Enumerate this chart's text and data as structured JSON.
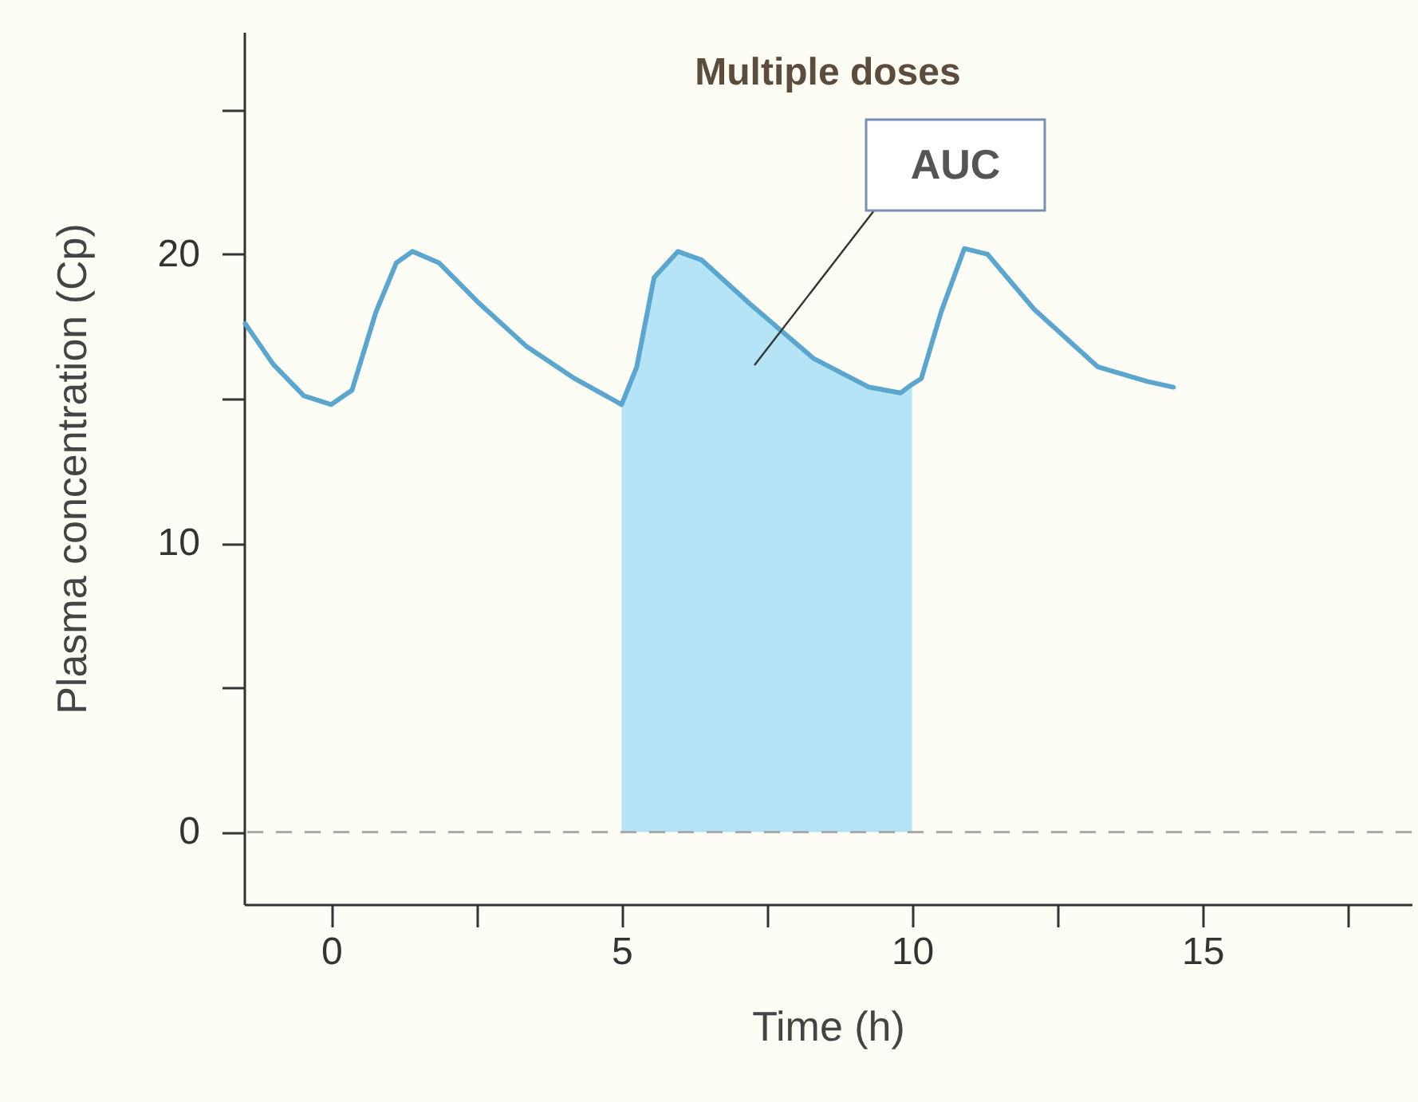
{
  "chart_data": {
    "type": "line",
    "title": "Multiple doses",
    "xlabel": "Time (h)",
    "ylabel": "Plasma concentration (Cp)",
    "xlim": [
      -1.5,
      18.6
    ],
    "ylim": [
      -2.5,
      27.7
    ],
    "xticks": [
      0,
      {
        "value": 2.5,
        "label": null
      },
      5,
      {
        "value": 7.5,
        "label": null
      },
      10,
      {
        "value": 12.5,
        "label": null
      },
      15,
      {
        "value": 17.5,
        "label": null
      }
    ],
    "yticks": [
      0,
      {
        "value": 5,
        "label": null
      },
      10,
      {
        "value": 15,
        "label": null
      },
      20,
      {
        "value": 25,
        "label": null
      }
    ],
    "series": [
      {
        "type": "area",
        "color": "#b5e4f7",
        "x": [
          5,
          5.26,
          5.56,
          5.97,
          6.38,
          7.2,
          8.3,
          9.26,
          9.8,
          10
        ],
        "values": [
          14.8,
          16.1,
          19.2,
          20.1,
          19.8,
          18.3,
          16.4,
          15.4,
          15.2,
          15.5
        ]
      },
      {
        "color": "#5aa6cf",
        "x": [
          -1.48,
          -1.0,
          -0.47,
          0,
          0.36,
          0.77,
          1.12,
          1.4,
          1.86,
          2.55,
          3.37,
          4.19,
          5,
          5.26,
          5.56,
          5.97,
          6.38,
          7.2,
          8.3,
          9.26,
          9.8,
          10,
          10.16,
          10.5,
          10.9,
          11.3,
          12.1,
          13.2,
          14.05,
          14.5
        ],
        "values": [
          17.6,
          16.2,
          15.1,
          14.8,
          15.3,
          18.0,
          19.7,
          20.1,
          19.7,
          18.3,
          16.8,
          15.7,
          14.8,
          16.1,
          19.2,
          20.1,
          19.8,
          18.3,
          16.4,
          15.4,
          15.2,
          15.5,
          15.7,
          18.0,
          20.2,
          20.0,
          18.1,
          16.1,
          15.6,
          15.4
        ]
      }
    ],
    "ref_lines": [
      {
        "axis": "y",
        "value": 0,
        "color": "#aaaaaa",
        "line_style": "dashed"
      }
    ],
    "annotations": [
      "AUC"
    ],
    "grid": false
  }
}
